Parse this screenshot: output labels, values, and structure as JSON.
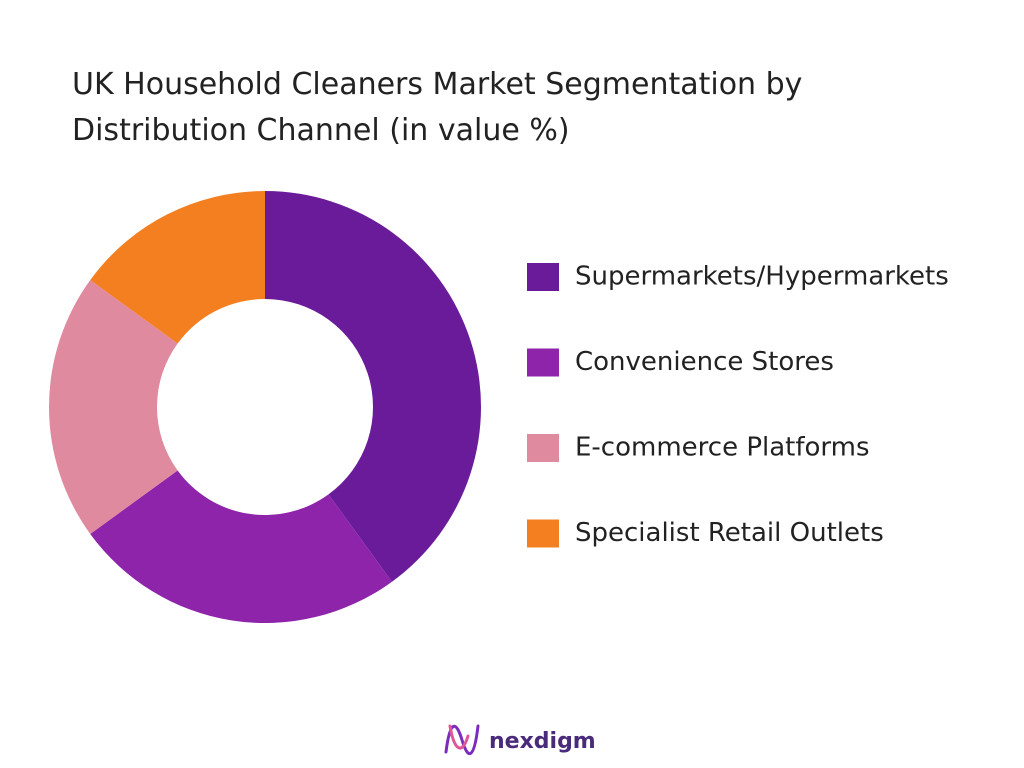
{
  "chart_data": {
    "type": "donut",
    "title": "UK Household Cleaners Market Segmentation by Distribution Channel (in value %)",
    "categories": [
      "Supermarkets/Hypermarkets",
      "Convenience Stores",
      "E-commerce Platforms",
      "Specialist Retail Outlets"
    ],
    "values": [
      40,
      25,
      20,
      15
    ],
    "colors": [
      "#6a1b9a",
      "#8e24aa",
      "#e08aa0",
      "#f47f20"
    ],
    "legend": "right"
  },
  "brand": "nexdigm"
}
